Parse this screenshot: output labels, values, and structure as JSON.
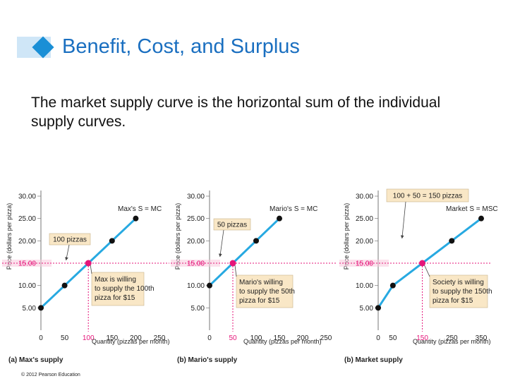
{
  "slide": {
    "title": "Benefit, Cost, and Surplus",
    "subtitle": "The market supply curve is the horizontal sum of the individual supply curves.",
    "copyright": "© 2012 Pearson Education"
  },
  "colors": {
    "title": "#1a6fc0",
    "curve": "#27a9e1",
    "point": "#111111",
    "highlight": "#e5157a",
    "callout": "#f9e7c6"
  },
  "chart_data": [
    {
      "type": "line",
      "panel_label": "(a) Max's supply",
      "curve_label": "Max's S = MC",
      "xlabel": "Quantity (pizzas per month)",
      "ylabel": "Price (dollars per pizza)",
      "xlim": [
        0,
        250
      ],
      "ylim": [
        0,
        30
      ],
      "x_ticks": [
        "0",
        "50",
        "100",
        "150",
        "200",
        "250"
      ],
      "y_ticks": [
        "5.00",
        "10.00",
        "15.00",
        "20.00",
        "25.00",
        "30.00"
      ],
      "highlight_tick": "100",
      "points": [
        {
          "x": 0,
          "y": 5
        },
        {
          "x": 50,
          "y": 10
        },
        {
          "x": 150,
          "y": 20
        },
        {
          "x": 200,
          "y": 25
        }
      ],
      "highlight_point": {
        "x": 100,
        "y": 15
      },
      "price_label": "15.00",
      "quantity_callout": "100 pizzas",
      "note": [
        "Max is willing",
        "to supply the 100th",
        "pizza for $15"
      ]
    },
    {
      "type": "line",
      "panel_label": "(b) Mario's supply",
      "curve_label": "Mario's S = MC",
      "xlabel": "Quantity (pizzas per month)",
      "ylabel": "Price (dollars per pizza)",
      "xlim": [
        0,
        250
      ],
      "ylim": [
        0,
        30
      ],
      "x_ticks": [
        "0",
        "50",
        "100",
        "150",
        "200",
        "250"
      ],
      "y_ticks": [
        "5.00",
        "10.00",
        "15.00",
        "20.00",
        "25.00",
        "30.00"
      ],
      "highlight_tick": "50",
      "points": [
        {
          "x": 0,
          "y": 10
        },
        {
          "x": 100,
          "y": 20
        },
        {
          "x": 150,
          "y": 25
        }
      ],
      "highlight_point": {
        "x": 50,
        "y": 15
      },
      "price_label": "15.00",
      "quantity_callout": "50 pizzas",
      "note": [
        "Mario's willing",
        "to supply the 50th",
        "pizza for $15"
      ]
    },
    {
      "type": "line",
      "panel_label": "(b) Market supply",
      "curve_label": "Market S = MSC",
      "xlabel": "Quantity (pizzas per month)",
      "ylabel": "Price (dollars per pizza)",
      "xlim": [
        0,
        350
      ],
      "ylim": [
        0,
        30
      ],
      "x_ticks": [
        "0",
        "50",
        "150",
        "250",
        "350"
      ],
      "x_tick_values": [
        0,
        50,
        150,
        250,
        350
      ],
      "y_ticks": [
        "5.00",
        "10.00",
        "15.00",
        "20.00",
        "25.00",
        "30.00"
      ],
      "highlight_tick": "150",
      "points": [
        {
          "x": 0,
          "y": 5
        },
        {
          "x": 50,
          "y": 10
        },
        {
          "x": 250,
          "y": 20
        },
        {
          "x": 350,
          "y": 25
        }
      ],
      "highlight_point": {
        "x": 150,
        "y": 15
      },
      "price_label": "15.00",
      "quantity_callout": "100 + 50 = 150 pizzas",
      "note": [
        "Society is willing",
        "to supply the 150th",
        "pizza for $15"
      ]
    }
  ]
}
